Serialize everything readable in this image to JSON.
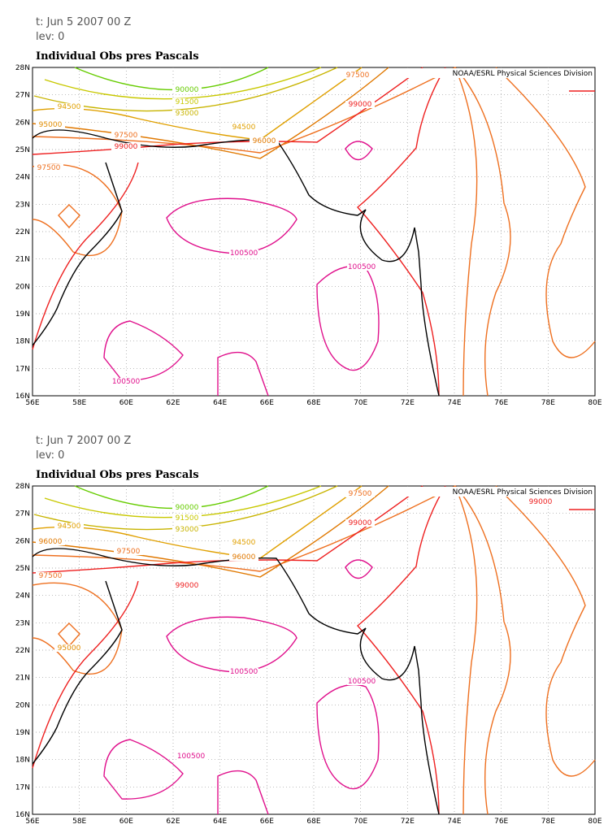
{
  "panels": [
    {
      "time": "t: Jun 5 2007 00 Z",
      "level": "lev: 0",
      "title": "Individual Obs pres Pascals",
      "credit": "NOAA/ESRL Physical Sciences Division",
      "lat_labels": [
        "28N",
        "27N",
        "26N",
        "25N",
        "24N",
        "23N",
        "22N",
        "21N",
        "20N",
        "19N",
        "18N",
        "17N",
        "16N"
      ],
      "lon_labels": [
        "56E",
        "58E",
        "60E",
        "62E",
        "64E",
        "66E",
        "68E",
        "70E",
        "72E",
        "74E",
        "76E",
        "78E",
        "80E"
      ],
      "contour_labels": [
        90000,
        91500,
        93000,
        94500,
        95000,
        97500,
        99000,
        94500,
        96000,
        97500,
        99000,
        97500,
        100500,
        100500,
        100500
      ]
    },
    {
      "time": "t: Jun 7 2007 00 Z",
      "level": "lev: 0",
      "title": "Individual Obs pres Pascals",
      "credit": "NOAA/ESRL Physical Sciences Division",
      "lat_labels": [
        "28N",
        "27N",
        "26N",
        "25N",
        "24N",
        "23N",
        "22N",
        "21N",
        "20N",
        "19N",
        "18N",
        "17N",
        "16N"
      ],
      "lon_labels": [
        "56E",
        "58E",
        "60E",
        "62E",
        "64E",
        "66E",
        "68E",
        "70E",
        "72E",
        "74E",
        "76E",
        "78E",
        "80E"
      ],
      "contour_labels": [
        90000,
        91500,
        93000,
        94500,
        96000,
        97500,
        94500,
        96000,
        97500,
        99000,
        99000,
        97500,
        99000,
        95000,
        100500,
        100500,
        100500
      ]
    }
  ]
}
